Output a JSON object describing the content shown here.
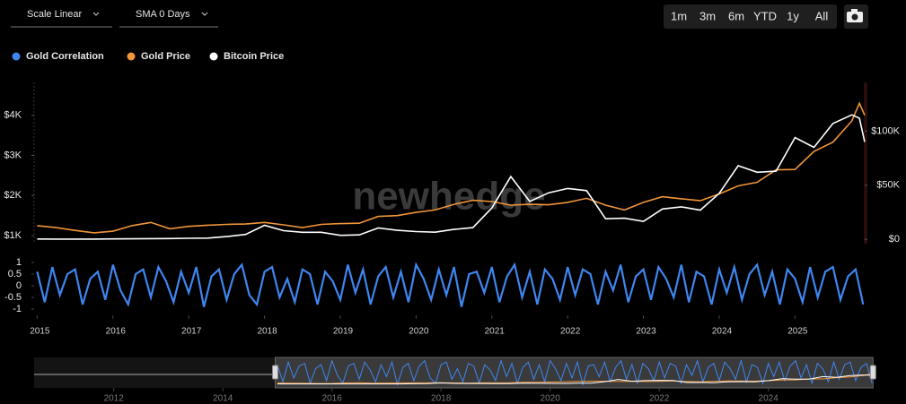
{
  "toolbar": {
    "scale": "Scale Linear",
    "sma": "SMA 0 Days",
    "ranges": [
      "1m",
      "3m",
      "6m",
      "YTD",
      "1y",
      "All"
    ]
  },
  "watermark": "newhedge",
  "chart_data": [
    {
      "type": "line",
      "x": [
        2015.0,
        2015.25,
        2015.5,
        2015.75,
        2016.0,
        2016.25,
        2016.5,
        2016.75,
        2017.0,
        2017.25,
        2017.5,
        2017.75,
        2018.0,
        2018.25,
        2018.5,
        2018.75,
        2019.0,
        2019.25,
        2019.5,
        2019.75,
        2020.0,
        2020.25,
        2020.5,
        2020.75,
        2021.0,
        2021.25,
        2021.5,
        2021.75,
        2022.0,
        2022.25,
        2022.5,
        2022.75,
        2023.0,
        2023.25,
        2023.5,
        2023.75,
        2024.0,
        2024.25,
        2024.5,
        2024.75,
        2025.0,
        2025.25,
        2025.5,
        2025.75,
        2025.85,
        2025.92
      ],
      "xlim": [
        2014.96,
        2025.92
      ],
      "ylim": [
        800,
        4820
      ],
      "yticks": [
        {
          "value": 1000,
          "label": "$1K"
        },
        {
          "value": 2000,
          "label": "$2K"
        },
        {
          "value": 3000,
          "label": "$3K"
        },
        {
          "value": 4000,
          "label": "$4K"
        }
      ],
      "y2lim": [
        -4000,
        145000
      ],
      "y2ticks": [
        {
          "value": 0,
          "label": "$0"
        },
        {
          "value": 50000,
          "label": "$50K"
        },
        {
          "value": 100000,
          "label": "$100K"
        }
      ],
      "series": [
        {
          "name": "Gold Price",
          "color": "#f0953a",
          "values": [
            1250,
            1200,
            1130,
            1070,
            1110,
            1250,
            1330,
            1170,
            1230,
            1260,
            1280,
            1290,
            1330,
            1270,
            1200,
            1280,
            1300,
            1310,
            1480,
            1500,
            1580,
            1640,
            1780,
            1880,
            1850,
            1760,
            1780,
            1770,
            1830,
            1930,
            1760,
            1640,
            1830,
            1970,
            1920,
            1870,
            2040,
            2240,
            2330,
            2640,
            2650,
            3100,
            3330,
            3860,
            4300,
            4000
          ]
        },
        {
          "name": "Bitcoin Price",
          "color": "#ffffff",
          "axis": "y2",
          "values": [
            300,
            250,
            250,
            250,
            400,
            450,
            600,
            700,
            1000,
            1100,
            2500,
            4500,
            13000,
            8000,
            6500,
            6500,
            3700,
            4100,
            10500,
            8300,
            7200,
            6600,
            9200,
            10800,
            29000,
            58000,
            35000,
            43000,
            47000,
            45000,
            19000,
            19500,
            16500,
            28000,
            30000,
            27000,
            42500,
            68000,
            62000,
            63000,
            94000,
            85000,
            107000,
            115000,
            112000,
            90000
          ]
        }
      ]
    },
    {
      "type": "line",
      "x": [
        2015.0,
        2015.1,
        2015.2,
        2015.3,
        2015.4,
        2015.5,
        2015.6,
        2015.7,
        2015.8,
        2015.9,
        2016.0,
        2016.1,
        2016.2,
        2016.3,
        2016.4,
        2016.5,
        2016.6,
        2016.7,
        2016.8,
        2016.9,
        2017.0,
        2017.1,
        2017.2,
        2017.3,
        2017.4,
        2017.5,
        2017.6,
        2017.7,
        2017.8,
        2017.9,
        2018.0,
        2018.1,
        2018.2,
        2018.3,
        2018.4,
        2018.5,
        2018.6,
        2018.7,
        2018.8,
        2018.9,
        2019.0,
        2019.1,
        2019.2,
        2019.3,
        2019.4,
        2019.5,
        2019.6,
        2019.7,
        2019.8,
        2019.9,
        2020.0,
        2020.1,
        2020.2,
        2020.3,
        2020.4,
        2020.5,
        2020.6,
        2020.7,
        2020.8,
        2020.9,
        2021.0,
        2021.1,
        2021.2,
        2021.3,
        2021.4,
        2021.5,
        2021.6,
        2021.7,
        2021.8,
        2021.9,
        2022.0,
        2022.1,
        2022.2,
        2022.3,
        2022.4,
        2022.5,
        2022.6,
        2022.7,
        2022.8,
        2022.9,
        2023.0,
        2023.1,
        2023.2,
        2023.3,
        2023.4,
        2023.5,
        2023.6,
        2023.7,
        2023.8,
        2023.9,
        2024.0,
        2024.1,
        2024.2,
        2024.3,
        2024.4,
        2024.5,
        2024.6,
        2024.7,
        2024.8,
        2024.9,
        2025.0,
        2025.1,
        2025.2,
        2025.3,
        2025.4,
        2025.5,
        2025.6,
        2025.7,
        2025.8,
        2025.9
      ],
      "xlim": [
        2014.96,
        2025.92
      ],
      "xticks": [
        2015,
        2016,
        2017,
        2018,
        2019,
        2020,
        2021,
        2022,
        2023,
        2024,
        2025
      ],
      "ylim": [
        -1.15,
        1.15
      ],
      "yticks": [
        1,
        0.5,
        0,
        -0.5,
        -1
      ],
      "series": [
        {
          "name": "Gold Correlation",
          "color": "#3f86f0",
          "values": [
            0.6,
            -0.7,
            0.8,
            -0.4,
            0.5,
            0.7,
            -0.8,
            0.3,
            0.6,
            -0.6,
            0.9,
            -0.2,
            -0.8,
            0.5,
            0.7,
            -0.5,
            0.8,
            0.2,
            -0.7,
            0.6,
            -0.3,
            0.8,
            -0.9,
            0.4,
            0.7,
            -0.6,
            0.5,
            0.9,
            -0.4,
            -0.8,
            0.6,
            0.8,
            -0.5,
            0.3,
            -0.7,
            0.7,
            0.5,
            -0.8,
            0.6,
            0.2,
            -0.6,
            0.9,
            -0.3,
            0.7,
            -0.8,
            0.4,
            0.8,
            -0.5,
            0.6,
            -0.7,
            0.9,
            0.3,
            -0.6,
            0.7,
            -0.4,
            0.8,
            -0.9,
            0.5,
            0.6,
            -0.3,
            0.8,
            -0.7,
            0.4,
            0.9,
            -0.5,
            0.6,
            -0.8,
            0.7,
            0.3,
            -0.6,
            0.8,
            -0.4,
            0.7,
            0.5,
            -0.8,
            0.6,
            -0.2,
            0.9,
            -0.7,
            0.4,
            0.7,
            -0.6,
            0.8,
            0.3,
            -0.5,
            0.9,
            -0.7,
            0.6,
            0.4,
            -0.8,
            0.7,
            -0.3,
            0.8,
            -0.6,
            0.5,
            0.9,
            -0.4,
            0.6,
            -0.8,
            0.7,
            0.3,
            -0.7,
            0.8,
            -0.5,
            0.6,
            0.8,
            -0.6,
            0.4,
            0.7,
            -0.8
          ]
        }
      ]
    },
    {
      "type": "navigator",
      "xlim": [
        2010.54,
        2025.8
      ],
      "xticks": [
        2012,
        2014,
        2016,
        2018,
        2020,
        2022,
        2024
      ]
    }
  ]
}
